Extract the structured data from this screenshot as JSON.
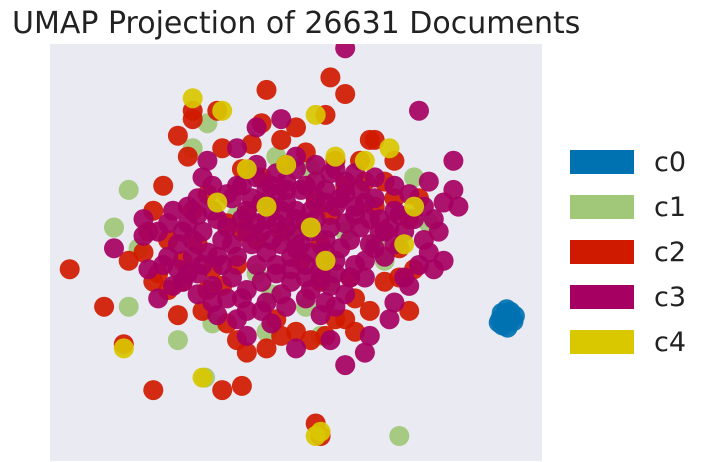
{
  "chart_data": {
    "type": "scatter",
    "title": "UMAP Projection of 26631 Documents",
    "xlabel": "",
    "ylabel": "",
    "xlim": [
      0,
      100
    ],
    "ylim": [
      0,
      100
    ],
    "grid": false,
    "legend_position": "right",
    "background": "#EAEAF2",
    "series": [
      {
        "name": "c0",
        "color": "#0072B2",
        "points": [
          [
            91.5,
            34
          ],
          [
            92.5,
            35
          ],
          [
            93.5,
            34
          ],
          [
            94.2,
            33.5
          ],
          [
            92,
            32.5
          ],
          [
            93,
            32
          ],
          [
            91.8,
            35.5
          ],
          [
            93.6,
            35.8
          ],
          [
            92.8,
            36.4
          ],
          [
            91.2,
            33.2
          ],
          [
            94.5,
            34.8
          ],
          [
            92.4,
            33.8
          ]
        ]
      },
      {
        "name": "c1",
        "color": "#A1C779",
        "points": [
          [
            29,
            75
          ],
          [
            16,
            65
          ],
          [
            13,
            56
          ],
          [
            18,
            51
          ],
          [
            16,
            37
          ],
          [
            26,
            29
          ],
          [
            33,
            33
          ],
          [
            31.5,
            20
          ],
          [
            74,
            68
          ],
          [
            77,
            57
          ],
          [
            68,
            48
          ],
          [
            57,
            43
          ],
          [
            55,
            30
          ],
          [
            44,
            31
          ],
          [
            71,
            6
          ],
          [
            32,
            81
          ],
          [
            53,
            70
          ],
          [
            49,
            54
          ],
          [
            60,
            55
          ],
          [
            42,
            45
          ],
          [
            52,
            37
          ],
          [
            46,
            73
          ],
          [
            66,
            52
          ],
          [
            38,
            59
          ],
          [
            45,
            40
          ]
        ]
      },
      {
        "name": "c2",
        "color": "#D01A00",
        "points": [
          [
            43,
            81
          ],
          [
            44,
            89
          ],
          [
            57,
            92
          ],
          [
            56,
            83
          ],
          [
            65,
            77
          ],
          [
            60,
            88
          ],
          [
            29,
            82
          ],
          [
            26,
            78
          ],
          [
            39,
            70
          ],
          [
            35,
            75
          ],
          [
            28,
            73
          ],
          [
            23,
            66
          ],
          [
            21,
            60
          ],
          [
            20,
            55
          ],
          [
            19,
            50
          ],
          [
            16,
            48
          ],
          [
            22,
            45
          ],
          [
            21,
            43
          ],
          [
            24,
            41
          ],
          [
            11,
            37
          ],
          [
            4,
            46
          ],
          [
            26,
            35
          ],
          [
            27,
            43
          ],
          [
            31,
            36
          ],
          [
            32,
            41
          ],
          [
            35,
            42
          ],
          [
            36,
            33
          ],
          [
            38,
            29
          ],
          [
            40,
            26
          ],
          [
            44,
            27
          ],
          [
            46,
            34
          ],
          [
            47,
            30
          ],
          [
            50,
            31
          ],
          [
            53,
            29
          ],
          [
            56,
            30
          ],
          [
            58,
            34
          ],
          [
            60,
            34
          ],
          [
            62,
            31
          ],
          [
            65,
            36
          ],
          [
            62,
            39
          ],
          [
            73,
            36
          ],
          [
            68,
            43
          ],
          [
            71,
            44
          ],
          [
            74,
            46
          ],
          [
            71,
            51
          ],
          [
            73,
            58
          ],
          [
            75,
            63
          ],
          [
            70,
            63
          ],
          [
            66,
            61
          ],
          [
            64,
            67
          ],
          [
            60,
            66
          ],
          [
            57,
            59
          ],
          [
            54,
            62
          ],
          [
            52,
            57
          ],
          [
            55,
            52
          ],
          [
            51,
            48
          ],
          [
            47,
            55
          ],
          [
            42,
            53
          ],
          [
            40,
            59
          ],
          [
            45,
            61
          ],
          [
            43,
            68
          ],
          [
            48,
            71
          ],
          [
            52,
            74
          ],
          [
            58,
            72
          ],
          [
            63,
            72
          ],
          [
            66,
            77
          ],
          [
            70,
            72
          ],
          [
            68,
            67
          ],
          [
            39,
            55
          ],
          [
            36,
            57
          ],
          [
            29,
            60
          ],
          [
            30,
            52
          ],
          [
            27,
            48
          ],
          [
            33,
            46
          ],
          [
            38,
            47
          ],
          [
            32,
            64
          ],
          [
            24,
            53
          ],
          [
            55,
            43
          ],
          [
            61,
            44
          ],
          [
            35,
            17
          ],
          [
            39,
            18
          ],
          [
            21,
            17
          ],
          [
            15,
            28
          ],
          [
            54,
            9
          ],
          [
            55,
            6
          ],
          [
            29,
            84
          ],
          [
            50,
            80
          ],
          [
            47,
            77
          ],
          [
            41,
            76
          ],
          [
            34,
            84
          ]
        ]
      },
      {
        "name": "c3",
        "color": "#A50062",
        "points": [
          [
            60,
            99
          ],
          [
            75,
            84
          ],
          [
            82,
            72
          ],
          [
            82,
            65
          ],
          [
            80,
            62
          ],
          [
            77,
            67
          ],
          [
            83,
            61
          ],
          [
            71,
            59
          ],
          [
            76,
            53
          ],
          [
            78,
            46
          ],
          [
            80,
            48
          ],
          [
            73,
            42
          ],
          [
            70,
            38
          ],
          [
            69,
            34
          ],
          [
            65,
            30
          ],
          [
            64,
            26
          ],
          [
            60,
            23
          ],
          [
            57,
            29
          ],
          [
            50,
            27
          ],
          [
            45,
            33
          ],
          [
            40,
            30
          ],
          [
            38,
            34
          ],
          [
            33,
            38
          ],
          [
            27,
            43
          ],
          [
            22,
            39
          ],
          [
            13,
            51
          ],
          [
            19,
            54
          ],
          [
            22,
            55
          ],
          [
            25,
            60
          ],
          [
            28,
            61
          ],
          [
            31,
            68
          ],
          [
            32,
            72
          ],
          [
            38,
            75
          ],
          [
            42,
            80
          ],
          [
            47,
            82
          ],
          [
            50,
            73
          ],
          [
            48,
            67
          ],
          [
            46,
            64
          ],
          [
            43,
            62
          ],
          [
            40,
            60
          ],
          [
            37,
            63
          ],
          [
            34,
            58
          ],
          [
            31,
            55
          ],
          [
            35,
            53
          ],
          [
            38,
            49
          ],
          [
            42,
            47
          ],
          [
            46,
            45
          ],
          [
            49,
            43
          ],
          [
            53,
            41
          ],
          [
            57,
            42
          ],
          [
            61,
            44
          ],
          [
            64,
            48
          ],
          [
            66,
            51
          ],
          [
            68,
            55
          ],
          [
            67,
            58
          ],
          [
            62,
            59
          ],
          [
            58,
            61
          ],
          [
            54,
            63
          ],
          [
            50,
            60
          ],
          [
            46,
            57
          ],
          [
            43,
            55
          ],
          [
            41,
            52
          ],
          [
            44,
            50
          ],
          [
            47,
            52
          ],
          [
            50,
            54
          ],
          [
            53,
            55
          ],
          [
            56,
            53
          ],
          [
            59,
            51
          ],
          [
            61,
            53
          ],
          [
            63,
            56
          ],
          [
            60,
            57
          ],
          [
            57,
            56
          ],
          [
            54,
            58
          ],
          [
            51,
            52
          ],
          [
            49,
            49
          ],
          [
            52,
            47
          ],
          [
            55,
            46
          ],
          [
            58,
            48
          ],
          [
            56,
            50
          ],
          [
            53,
            50
          ],
          [
            50,
            51
          ],
          [
            48,
            56
          ],
          [
            45,
            53
          ],
          [
            42,
            57
          ],
          [
            39,
            58
          ],
          [
            36,
            56
          ],
          [
            33,
            60
          ],
          [
            30,
            63
          ],
          [
            28,
            57
          ],
          [
            26,
            52
          ],
          [
            29,
            49
          ],
          [
            32,
            50
          ],
          [
            35,
            47
          ],
          [
            37,
            44
          ],
          [
            40,
            41
          ],
          [
            43,
            43
          ],
          [
            46,
            47
          ],
          [
            49,
            46
          ],
          [
            52,
            44
          ],
          [
            55,
            44
          ],
          [
            58,
            45
          ],
          [
            62,
            47
          ],
          [
            65,
            52
          ],
          [
            68,
            49
          ],
          [
            70,
            52
          ],
          [
            72,
            55
          ],
          [
            74,
            58
          ],
          [
            70,
            60
          ],
          [
            66,
            63
          ],
          [
            63,
            65
          ],
          [
            60,
            67
          ],
          [
            57,
            69
          ],
          [
            54,
            67
          ],
          [
            51,
            65
          ],
          [
            48,
            62
          ],
          [
            45,
            66
          ],
          [
            42,
            68
          ],
          [
            39,
            66
          ],
          [
            36,
            64
          ],
          [
            33,
            66
          ],
          [
            30,
            59
          ],
          [
            27,
            55
          ],
          [
            24,
            49
          ],
          [
            26,
            46
          ],
          [
            28,
            45
          ],
          [
            31,
            47
          ],
          [
            34,
            49
          ],
          [
            37,
            52
          ],
          [
            40,
            55
          ],
          [
            44,
            58
          ],
          [
            47,
            60
          ],
          [
            50,
            58
          ],
          [
            53,
            60
          ],
          [
            56,
            62
          ],
          [
            59,
            63
          ],
          [
            62,
            61
          ],
          [
            65,
            58
          ],
          [
            67,
            55
          ],
          [
            69,
            56
          ],
          [
            64,
            44
          ],
          [
            60,
            40
          ],
          [
            56,
            38
          ],
          [
            52,
            39
          ],
          [
            48,
            37
          ],
          [
            44,
            38
          ],
          [
            40,
            36
          ],
          [
            36,
            39
          ],
          [
            33,
            42
          ],
          [
            30,
            45
          ],
          [
            38,
            66
          ],
          [
            42,
            71
          ],
          [
            46,
            69
          ],
          [
            50,
            70
          ],
          [
            54,
            71
          ],
          [
            58,
            70
          ],
          [
            62,
            69
          ],
          [
            66,
            68
          ],
          [
            70,
            66
          ],
          [
            73,
            64
          ],
          [
            76,
            61
          ],
          [
            78,
            58
          ],
          [
            79,
            55
          ],
          [
            77,
            50
          ],
          [
            75,
            47
          ],
          [
            72,
            44
          ],
          [
            55,
            35
          ],
          [
            58,
            37
          ],
          [
            47,
            40
          ],
          [
            43,
            36
          ],
          [
            39,
            39
          ],
          [
            34,
            35
          ],
          [
            30,
            40
          ],
          [
            25,
            42
          ],
          [
            23,
            47
          ],
          [
            20,
            46
          ],
          [
            19,
            58
          ],
          [
            24,
            57
          ],
          [
            29,
            53
          ],
          [
            41,
            63
          ],
          [
            44,
            65
          ],
          [
            48,
            65
          ],
          [
            52,
            66
          ],
          [
            56,
            65
          ],
          [
            60,
            64
          ],
          [
            64,
            62
          ]
        ]
      },
      {
        "name": "c4",
        "color": "#D9C700",
        "points": [
          [
            29,
            87
          ],
          [
            35,
            84
          ],
          [
            54,
            83
          ],
          [
            69,
            75
          ],
          [
            58,
            73
          ],
          [
            74,
            61
          ],
          [
            53,
            56
          ],
          [
            44,
            61
          ],
          [
            15,
            27
          ],
          [
            31,
            20
          ],
          [
            54,
            6
          ],
          [
            55,
            7
          ],
          [
            34,
            62
          ],
          [
            40,
            70
          ],
          [
            48,
            71
          ],
          [
            64,
            72
          ],
          [
            72,
            52
          ],
          [
            56,
            48
          ]
        ]
      }
    ]
  }
}
